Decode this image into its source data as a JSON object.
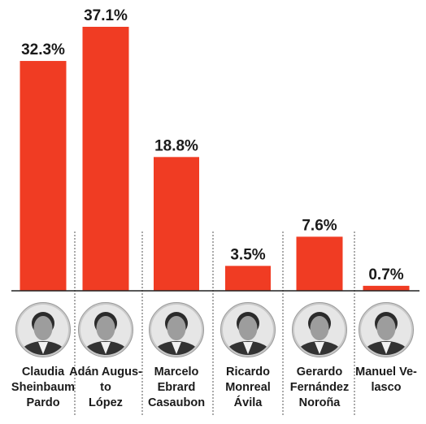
{
  "chart_data": {
    "type": "bar",
    "categories": [
      [
        "Claudia",
        "Sheinbaum",
        "Pardo"
      ],
      [
        "Adán Augus-",
        "to",
        "López"
      ],
      [
        "Marcelo",
        "Ebrard",
        "Casaubon"
      ],
      [
        "Ricardo",
        "Monreal",
        "Ávila"
      ],
      [
        "Gerardo",
        "Fernández",
        "Noroña"
      ],
      [
        "Manuel Ve-",
        "lasco"
      ]
    ],
    "values": [
      32.3,
      37.1,
      18.8,
      3.5,
      7.6,
      0.7
    ],
    "value_labels": [
      "32.3%",
      "37.1%",
      "18.8%",
      "3.5%",
      "7.6%",
      "0.7%"
    ],
    "bar_color": "#f03c23",
    "ylim": [
      0,
      40
    ],
    "grid": false,
    "legend": "none"
  },
  "avatars": [
    "photo-claudia-sheinbaum",
    "photo-adan-augusto-lopez",
    "photo-marcelo-ebrard",
    "photo-ricardo-monreal",
    "photo-gerardo-fernandez-norona",
    "photo-manuel-velasco"
  ]
}
